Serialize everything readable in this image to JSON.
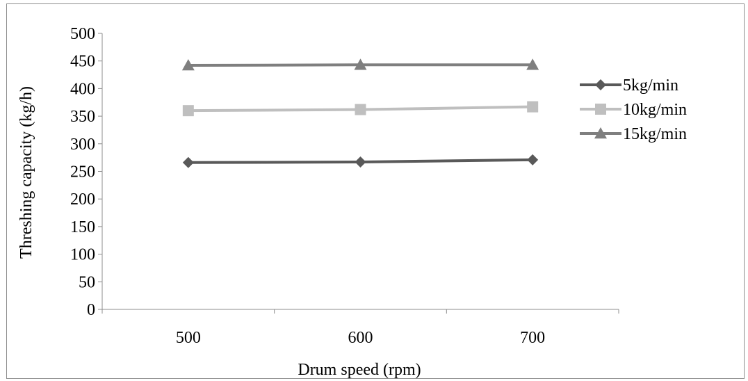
{
  "chart_data": {
    "type": "line",
    "title": "",
    "xlabel": "Drum speed (rpm)",
    "ylabel": "Threshing capacity (kg/h)",
    "x": [
      "500",
      "600",
      "700"
    ],
    "ylim": [
      0,
      500
    ],
    "yticks": [
      "0",
      "50",
      "100",
      "150",
      "200",
      "250",
      "300",
      "350",
      "400",
      "450",
      "500"
    ],
    "grid": false,
    "legend_position": "right",
    "series": [
      {
        "name": "5kg/min",
        "values": [
          266,
          267,
          271
        ],
        "marker": "diamond",
        "color": "#595959"
      },
      {
        "name": "10kg/min",
        "values": [
          360,
          362,
          367
        ],
        "marker": "square",
        "color": "#bfbfbf"
      },
      {
        "name": "15kg/min",
        "values": [
          442,
          443,
          443
        ],
        "marker": "triangle",
        "color": "#7f7f7f"
      }
    ]
  }
}
